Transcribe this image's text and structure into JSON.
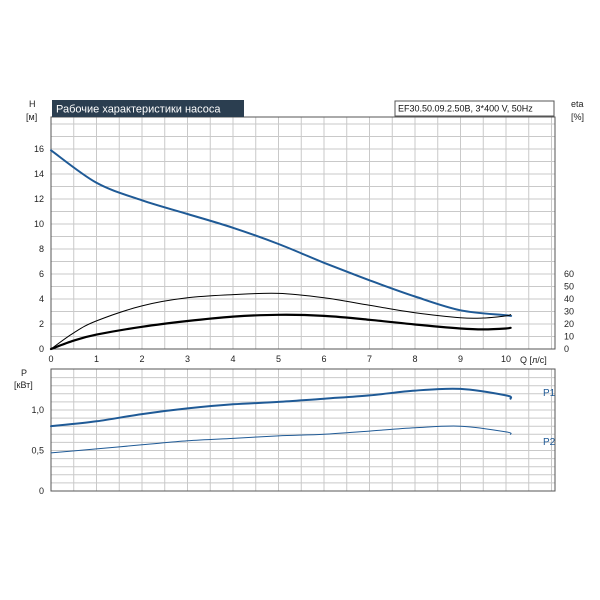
{
  "title": "Рабочие характеристики насоса",
  "model": "EF30.50.09.2.50B, 3*400 V, 50Hz",
  "colors": {
    "blue": "#1f5a96",
    "black": "#000000",
    "title_bg": "#2b3e50",
    "grid": "#c9c9c9"
  },
  "chart_data": [
    {
      "type": "line",
      "xlabel": "Q [л/с]",
      "ylabel": "H\n[м]",
      "y2label": "eta\n[%]",
      "xlim": [
        0,
        10.2
      ],
      "ylim": [
        0,
        16
      ],
      "y2lim": [
        0,
        60
      ],
      "x_ticks": [
        0,
        1,
        2,
        3,
        4,
        5,
        6,
        7,
        8,
        9,
        10
      ],
      "y_ticks": [
        0,
        2,
        4,
        6,
        8,
        10,
        12,
        14,
        16
      ],
      "y2_ticks": [
        0,
        10,
        20,
        30,
        40,
        50,
        60
      ],
      "grid": true,
      "series": [
        {
          "axis": "left",
          "color": "#1f5a96",
          "width": 2,
          "x": [
            0,
            1,
            2,
            3,
            4,
            5,
            6,
            7,
            8,
            9,
            10,
            10.1
          ],
          "y": [
            15.9,
            13.3,
            11.9,
            10.8,
            9.7,
            8.4,
            6.9,
            5.5,
            4.2,
            3.1,
            2.7,
            2.65
          ]
        },
        {
          "axis": "right",
          "color": "#000000",
          "width": 1,
          "x": [
            0,
            0.5,
            1,
            2,
            3,
            4,
            5,
            6,
            7,
            8,
            9,
            9.5,
            10,
            10.1
          ],
          "y": [
            0,
            13,
            22.5,
            34.5,
            41,
            43.5,
            44.5,
            41,
            35,
            29,
            25,
            24.8,
            26.5,
            27.5
          ]
        },
        {
          "axis": "right",
          "color": "#000000",
          "width": 2.2,
          "x": [
            0,
            0.5,
            1,
            2,
            3,
            4,
            5,
            6,
            7,
            8,
            9,
            9.5,
            10,
            10.1
          ],
          "y": [
            0,
            6.7,
            11.5,
            17.8,
            22.4,
            25.9,
            27.4,
            26.5,
            23.4,
            19.6,
            16.4,
            15.7,
            16.4,
            17
          ]
        }
      ]
    },
    {
      "type": "line",
      "ylabel": "P\n[кВт]",
      "xlim": [
        0,
        10.2
      ],
      "ylim": [
        0,
        1.5
      ],
      "y_ticks": [
        "0",
        "0,5",
        "1,0"
      ],
      "grid": true,
      "series": [
        {
          "name": "P1",
          "color": "#1f5a96",
          "width": 2,
          "x": [
            0,
            1,
            2,
            3,
            4,
            5,
            6,
            7,
            8,
            9,
            10,
            10.1
          ],
          "y": [
            0.8,
            0.86,
            0.95,
            1.02,
            1.07,
            1.1,
            1.14,
            1.18,
            1.24,
            1.26,
            1.18,
            1.14
          ]
        },
        {
          "name": "P2",
          "color": "#1f5a96",
          "width": 1,
          "x": [
            0,
            1,
            2,
            3,
            4,
            5,
            6,
            7,
            8,
            9,
            10,
            10.1
          ],
          "y": [
            0.47,
            0.52,
            0.57,
            0.62,
            0.65,
            0.68,
            0.7,
            0.74,
            0.78,
            0.8,
            0.73,
            0.7
          ]
        }
      ]
    }
  ]
}
